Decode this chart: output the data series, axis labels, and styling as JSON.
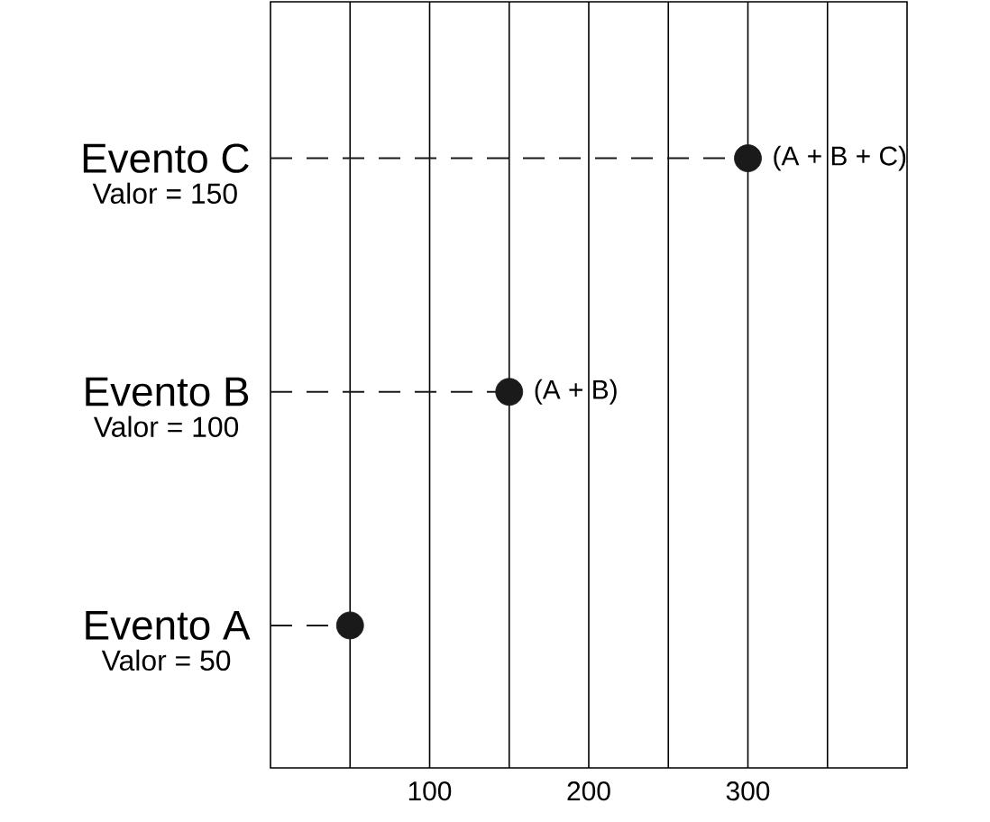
{
  "chart_data": {
    "type": "lollipop",
    "orientation": "horizontal",
    "categories": [
      "Evento C",
      "Evento B",
      "Evento A"
    ],
    "values": [
      300,
      150,
      50
    ],
    "value_labels": [
      "(A + B + C)",
      "(A + B)",
      null
    ],
    "color": "#1a1a1a",
    "line_style": "dashed",
    "marker": "circle",
    "annotations": [
      "Valor = 150",
      "Valor = 100",
      "Valor = 50"
    ],
    "xlim": [
      0,
      400
    ],
    "xticks": [
      {
        "value": 50,
        "label": null
      },
      100,
      {
        "value": 150,
        "label": null
      },
      200,
      {
        "value": 250,
        "label": null
      },
      300,
      {
        "value": 350,
        "label": null
      }
    ],
    "grid": "x"
  }
}
